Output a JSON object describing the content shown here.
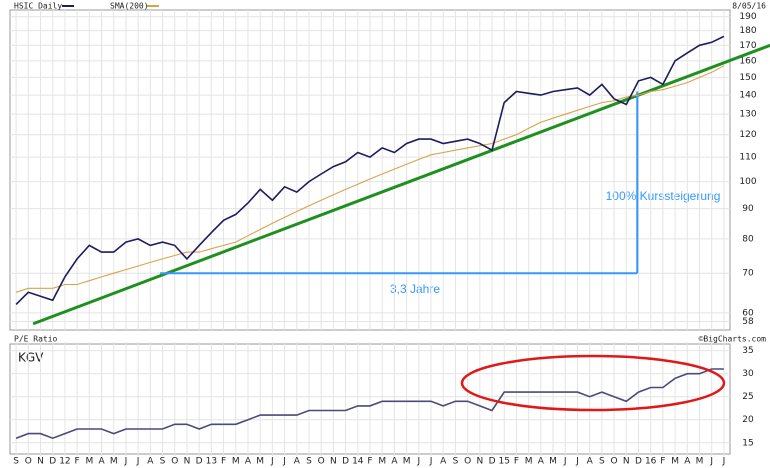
{
  "chart_data": [
    {
      "type": "line",
      "title": "HSIC Daily",
      "date": "8/05/16",
      "log_scale": true,
      "grid": true,
      "ylim": [
        57,
        192
      ],
      "yticks": [
        58,
        60,
        70,
        80,
        90,
        100,
        110,
        120,
        130,
        140,
        150,
        160,
        170,
        180,
        190
      ],
      "series": [
        {
          "name": "HSIC Daily",
          "color": "#1c1c5e",
          "values": [
            62,
            65,
            64,
            63,
            69,
            74,
            78,
            76,
            76,
            79,
            80,
            78,
            79,
            78,
            74,
            78,
            82,
            86,
            88,
            92,
            97,
            93,
            98,
            96,
            100,
            103,
            106,
            108,
            112,
            110,
            114,
            112,
            116,
            118,
            118,
            116,
            117,
            118,
            116,
            113,
            136,
            142,
            141,
            140,
            142,
            143,
            144,
            140,
            146,
            138,
            135,
            148,
            150,
            146,
            160,
            165,
            170,
            172,
            176
          ]
        },
        {
          "name": "SMA(200)",
          "color": "#d9a24a",
          "values": [
            65,
            66,
            66,
            66,
            67,
            67,
            68,
            69,
            70,
            71,
            72,
            73,
            74,
            75,
            76,
            76,
            77,
            78,
            79,
            81,
            83,
            85,
            87,
            89,
            91,
            93,
            95,
            97,
            99,
            101,
            103,
            105,
            107,
            109,
            111,
            112,
            113,
            114,
            115,
            116,
            118,
            120,
            123,
            126,
            128,
            130,
            132,
            134,
            136,
            137,
            139,
            140,
            142,
            143,
            145,
            147,
            150,
            153,
            157
          ]
        }
      ],
      "trendline": {
        "color": "#1f8f1f",
        "start_index": 1.4,
        "start_value": 57.5,
        "end_index": 61.8,
        "end_value": 170
      },
      "measure": {
        "color": "#3399ff",
        "start_index": 11.8,
        "end_index": 50.9,
        "base": 70,
        "top": 142,
        "height_label": "100% Kurssteigerung",
        "width_label": "3,3 Jahre"
      }
    },
    {
      "type": "line",
      "title": "P/E Ratio",
      "label": "KGV",
      "source": "©BigCharts.com",
      "grid": true,
      "ylim": [
        13,
        36
      ],
      "yticks": [
        15,
        20,
        25,
        30,
        35
      ],
      "categories": [
        "S",
        "O",
        "N",
        "D",
        "12",
        "F",
        "M",
        "A",
        "M",
        "J",
        "J",
        "A",
        "S",
        "O",
        "N",
        "D",
        "13",
        "F",
        "M",
        "A",
        "M",
        "J",
        "J",
        "A",
        "S",
        "O",
        "N",
        "D",
        "14",
        "F",
        "M",
        "A",
        "M",
        "J",
        "J",
        "A",
        "S",
        "O",
        "N",
        "D",
        "15",
        "F",
        "M",
        "A",
        "M",
        "J",
        "J",
        "A",
        "S",
        "O",
        "N",
        "D",
        "16",
        "F",
        "M",
        "A",
        "M",
        "J",
        "J"
      ],
      "series": [
        {
          "name": "P/E Ratio",
          "color": "#4a4a7a",
          "values": [
            16,
            17,
            17,
            16,
            17,
            18,
            18,
            18,
            17,
            18,
            18,
            18,
            18,
            19,
            19,
            18,
            19,
            19,
            19,
            20,
            21,
            21,
            21,
            21,
            22,
            22,
            22,
            22,
            23,
            23,
            24,
            24,
            24,
            24,
            24,
            23,
            24,
            24,
            23,
            22,
            26,
            26,
            26,
            26,
            26,
            26,
            26,
            25,
            26,
            25,
            24,
            26,
            27,
            27,
            29,
            30,
            30,
            31,
            31
          ]
        }
      ]
    }
  ]
}
